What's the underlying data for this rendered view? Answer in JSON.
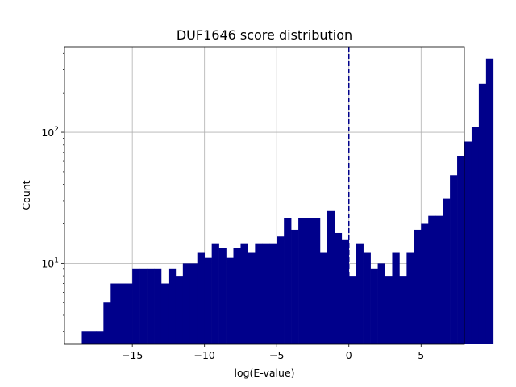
{
  "chart_data": {
    "type": "bar",
    "title": "DUF1646 score distribution",
    "xlabel": "log(E-value)",
    "ylabel": "Count",
    "xlim": [
      -19.7,
      8.0
    ],
    "ylim": [
      2.4,
      450
    ],
    "yscale": "log",
    "grid": true,
    "bar_color": "#00008b",
    "threshold": {
      "x": 0,
      "color": "#00008b",
      "style": "dashed"
    },
    "x_ticks": [
      {
        "value": -15,
        "label": "−15"
      },
      {
        "value": -10,
        "label": "−10"
      },
      {
        "value": -5,
        "label": "−5"
      },
      {
        "value": 0,
        "label": "0"
      },
      {
        "value": 5,
        "label": "5"
      }
    ],
    "y_ticks": [
      {
        "value": 10,
        "base": "10",
        "exp": "1"
      },
      {
        "value": 100,
        "base": "10",
        "exp": "2"
      }
    ],
    "bin_start": -18.5,
    "bin_width": 0.5,
    "values": [
      3,
      3,
      3,
      5,
      7,
      7,
      7,
      9,
      9,
      9,
      9,
      7,
      9,
      8,
      10,
      10,
      12,
      11,
      14,
      13,
      11,
      13,
      14,
      12,
      14,
      14,
      14,
      16,
      22,
      18,
      22,
      22,
      22,
      12,
      25,
      17,
      15,
      8,
      14,
      12,
      9,
      10,
      8,
      12,
      8,
      12,
      18,
      20,
      23,
      23,
      31,
      47,
      66,
      85,
      110,
      235,
      365
    ]
  }
}
